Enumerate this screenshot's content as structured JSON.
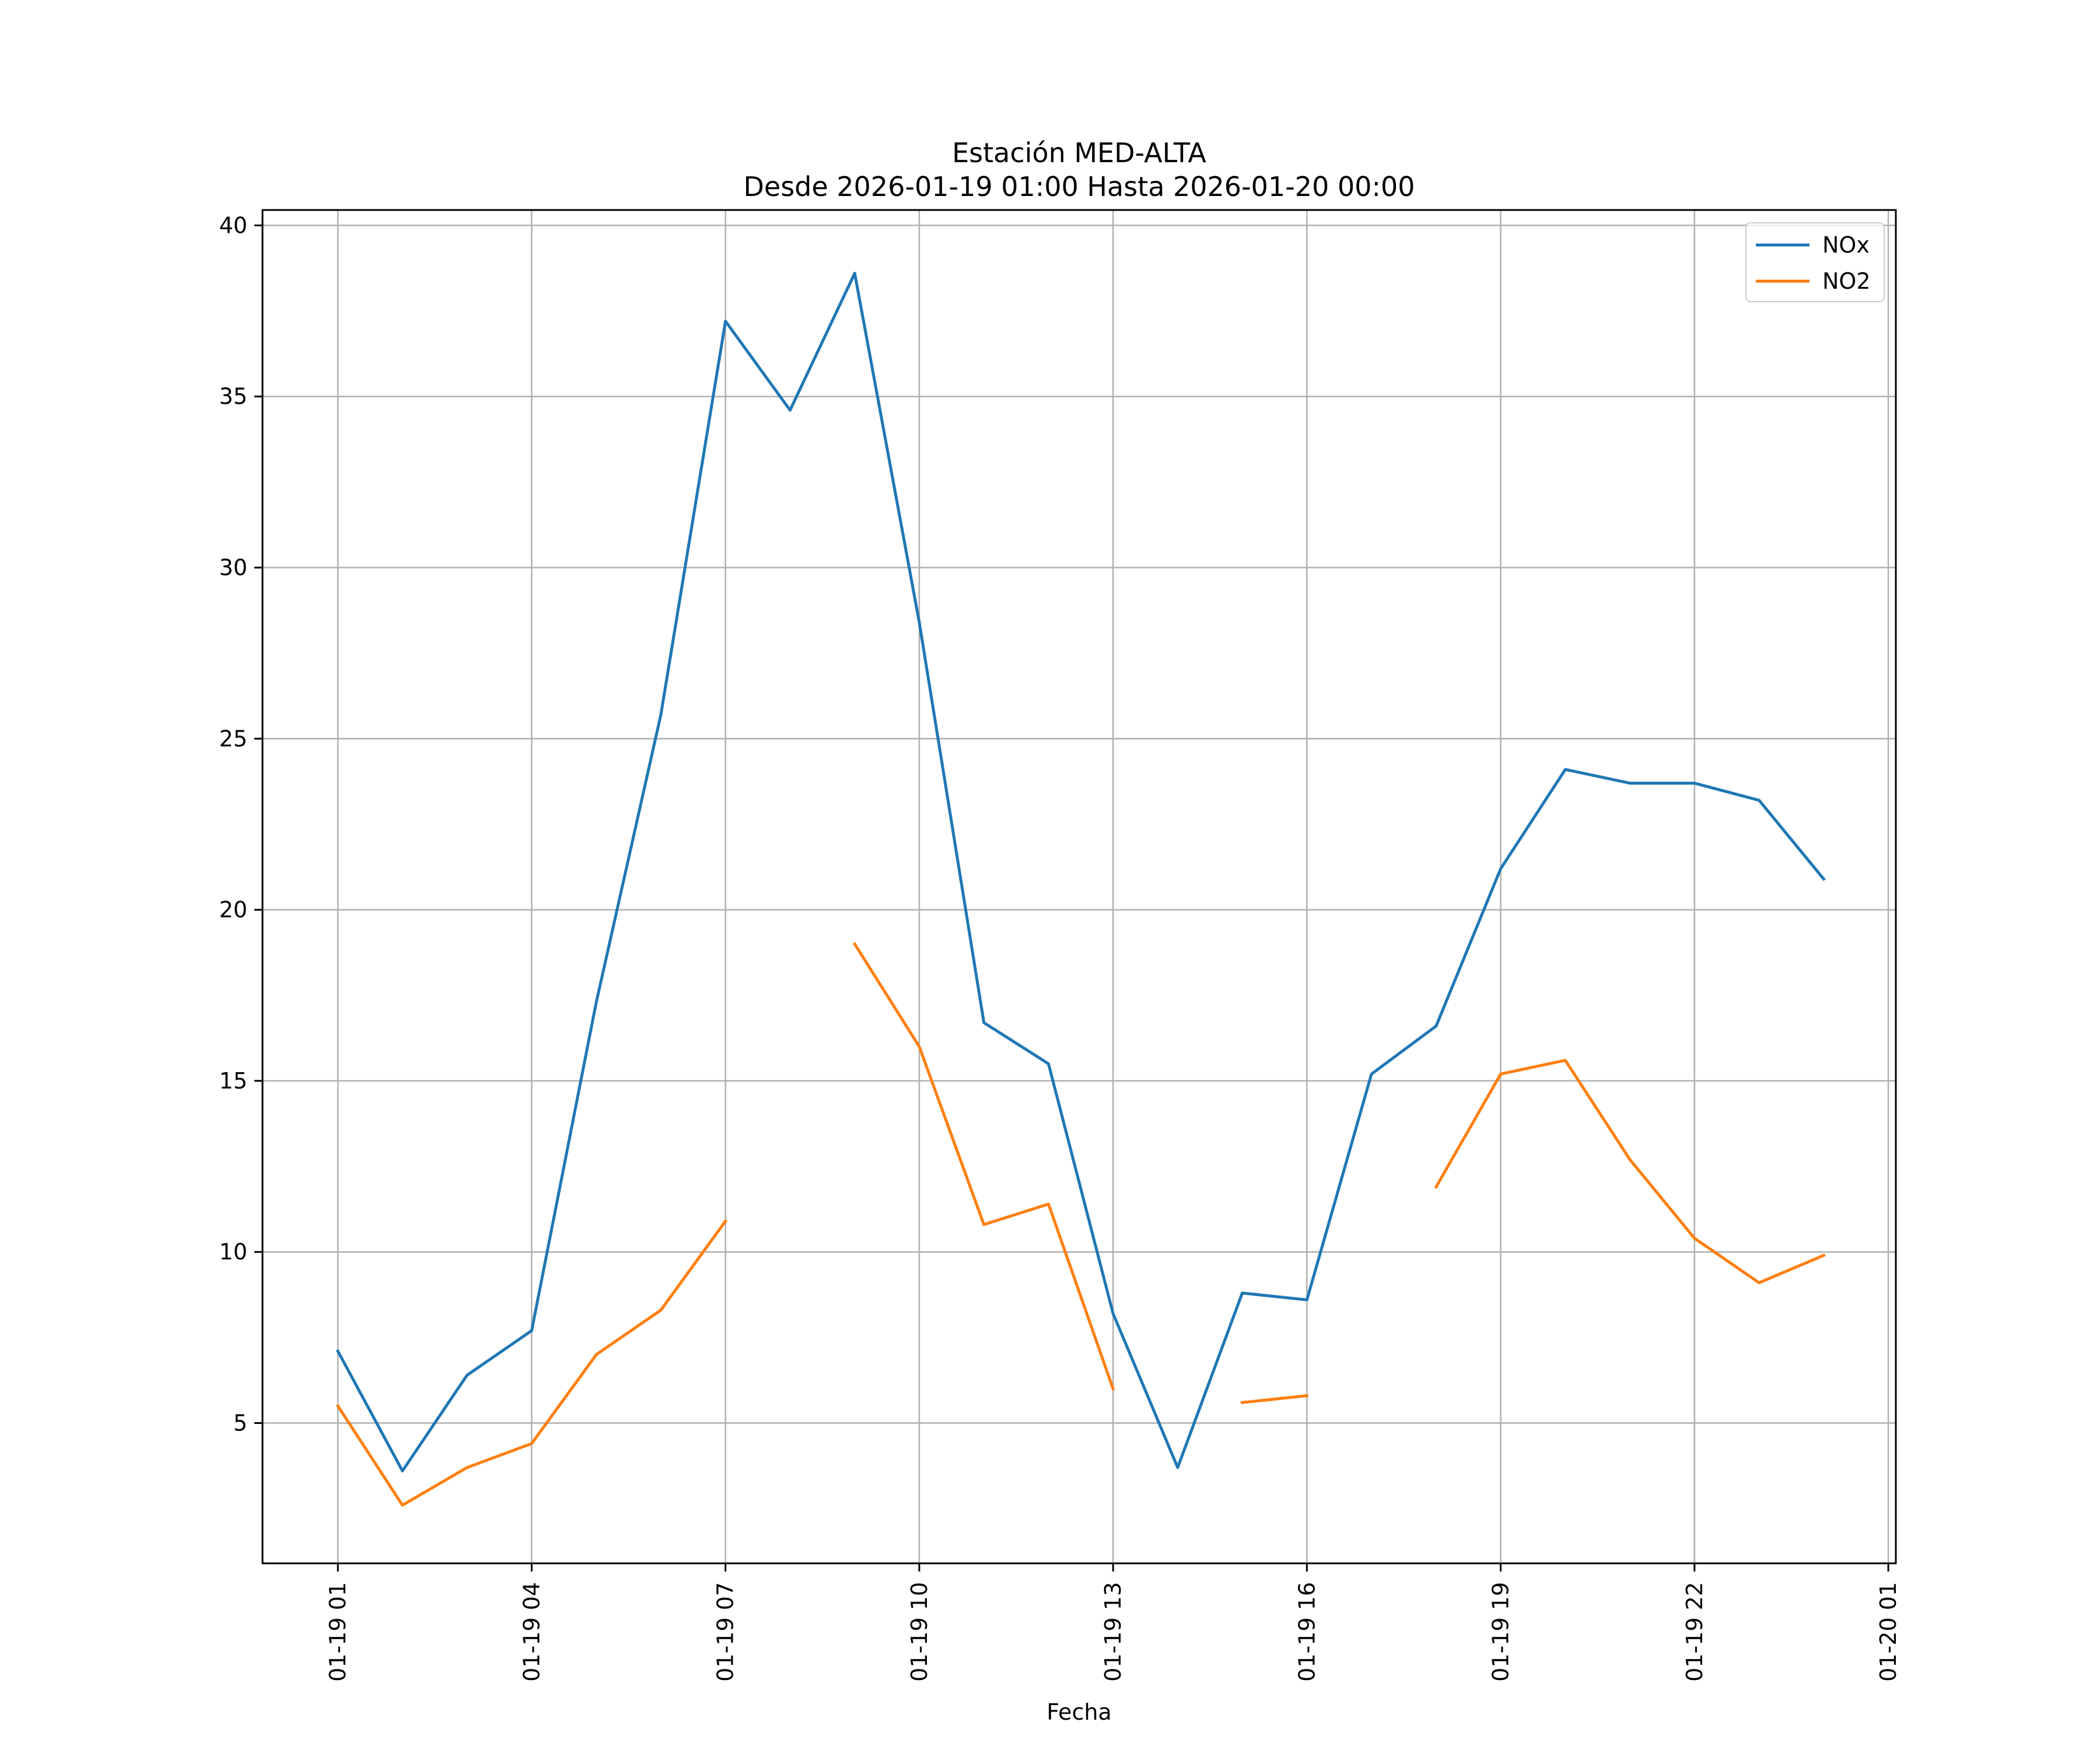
{
  "chart_data": {
    "type": "line",
    "title": "Estación MED-ALTA",
    "subtitle": "Desde 2026-01-19 01:00 Hasta 2026-01-20 00:00",
    "xlabel": "Fecha",
    "ylabel": "",
    "x": [
      "2026-01-19 01:00",
      "2026-01-19 02:00",
      "2026-01-19 03:00",
      "2026-01-19 04:00",
      "2026-01-19 05:00",
      "2026-01-19 06:00",
      "2026-01-19 07:00",
      "2026-01-19 08:00",
      "2026-01-19 09:00",
      "2026-01-19 10:00",
      "2026-01-19 11:00",
      "2026-01-19 12:00",
      "2026-01-19 13:00",
      "2026-01-19 14:00",
      "2026-01-19 15:00",
      "2026-01-19 16:00",
      "2026-01-19 17:00",
      "2026-01-19 18:00",
      "2026-01-19 19:00",
      "2026-01-19 20:00",
      "2026-01-19 21:00",
      "2026-01-19 22:00",
      "2026-01-19 23:00",
      "2026-01-20 00:00"
    ],
    "xlim": [
      "2026-01-18 23:50",
      "2026-01-20 01:07"
    ],
    "x_ticks": [
      "01-19 01",
      "01-19 04",
      "01-19 07",
      "01-19 10",
      "01-19 13",
      "01-19 16",
      "01-19 19",
      "01-19 22",
      "01-20 01"
    ],
    "x_tick_values": [
      "2026-01-19 01:00",
      "2026-01-19 04:00",
      "2026-01-19 07:00",
      "2026-01-19 10:00",
      "2026-01-19 13:00",
      "2026-01-19 16:00",
      "2026-01-19 19:00",
      "2026-01-19 22:00",
      "2026-01-20 01:00"
    ],
    "ylim": [
      0.9,
      40.45
    ],
    "y_ticks": [
      5,
      10,
      15,
      20,
      25,
      30,
      35,
      40
    ],
    "grid": true,
    "legend_position": "top-right",
    "series": [
      {
        "name": "NOx",
        "color": "#1f77b4",
        "values": [
          7.1,
          3.6,
          6.4,
          7.7,
          17.3,
          25.7,
          37.2,
          34.6,
          38.6,
          28.4,
          16.7,
          15.5,
          8.2,
          3.7,
          8.8,
          8.6,
          15.2,
          16.6,
          21.2,
          24.1,
          23.7,
          23.7,
          23.2,
          20.9
        ]
      },
      {
        "name": "NO2",
        "color": "#ff7f0e",
        "values": [
          5.5,
          2.6,
          3.7,
          4.4,
          7.0,
          8.3,
          10.9,
          null,
          19.0,
          16.0,
          10.8,
          11.4,
          6.0,
          null,
          5.6,
          5.8,
          null,
          11.9,
          15.2,
          15.6,
          12.7,
          10.4,
          9.1,
          9.9
        ]
      }
    ]
  }
}
